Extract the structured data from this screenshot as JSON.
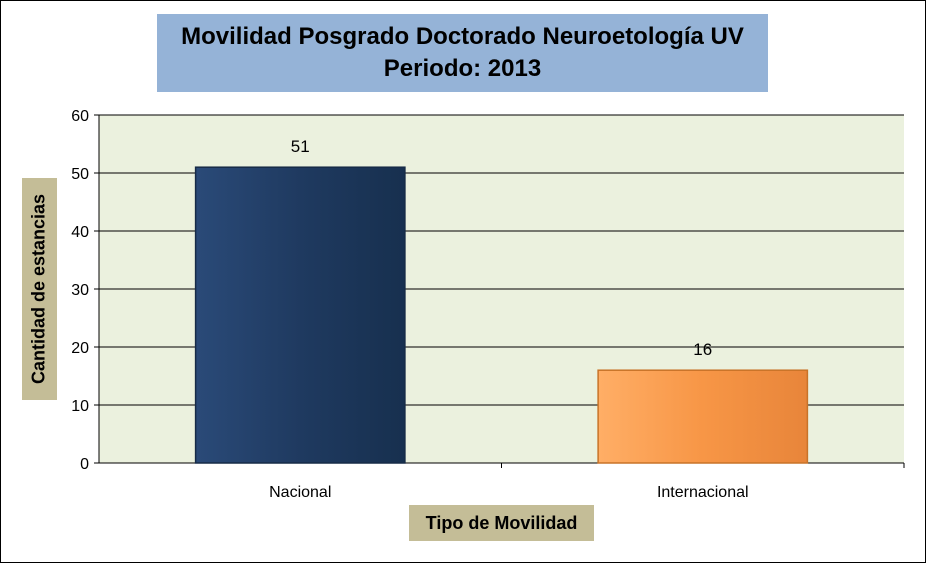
{
  "chart_data": {
    "type": "bar",
    "title": "Movilidad Posgrado Doctorado Neuroetología UV",
    "subtitle": "Periodo:   2013",
    "xlabel": "Tipo de Movilidad",
    "ylabel": "Cantidad de estancias",
    "categories": [
      "Nacional",
      "Internacional"
    ],
    "values": [
      51,
      16
    ],
    "data_labels": [
      "51",
      "16"
    ],
    "ylim": [
      0,
      60
    ],
    "yticks": [
      0,
      10,
      20,
      30,
      40,
      50,
      60
    ],
    "ytick_labels": [
      "0",
      "10",
      "20",
      "30",
      "40",
      "50",
      "60"
    ],
    "grid": true,
    "legend": "none",
    "colors": {
      "bars": [
        "#1f3a60",
        "#f79646"
      ],
      "bar_borders": [
        "#172b47",
        "#c87328"
      ],
      "plot_background": "#ebf1de",
      "title_background": "#95b3d7",
      "axis_label_background": "#c4bd97",
      "gridline": "#000000"
    }
  }
}
